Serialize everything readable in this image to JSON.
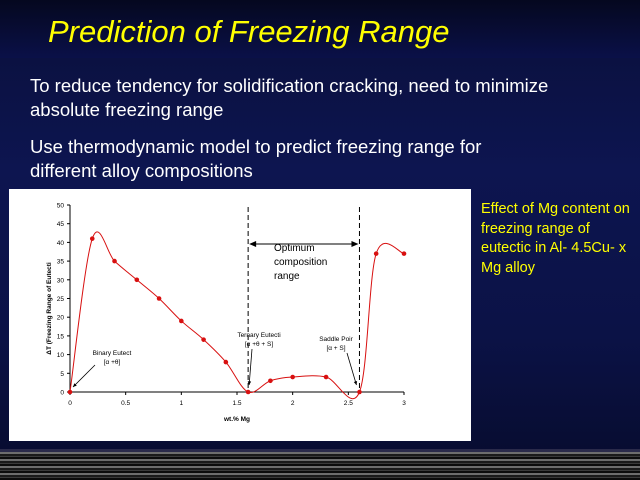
{
  "slide": {
    "title": "Prediction of Freezing Range",
    "bullets": [
      "To reduce tendency for solidification cracking, need to minimize absolute freezing range",
      "Use thermodynamic model to predict freezing range for different alloy compositions"
    ],
    "side_note": "Effect of Mg content on freezing range of eutectic in Al- 4.5Cu- x Mg alloy",
    "colors": {
      "title": "#ffff00",
      "bullets": "#ffffff",
      "side_note": "#ffff00",
      "series": "#d81010"
    }
  },
  "chart_data": {
    "type": "line",
    "xlabel": "wt.% Mg",
    "ylabel": "ΔT (Freezing Range of Eutecti",
    "xlim": [
      0,
      3
    ],
    "ylim": [
      0,
      50
    ],
    "x_ticks": [
      "0",
      "0.5",
      "1",
      "1.5",
      "2",
      "2.5",
      "3"
    ],
    "y_ticks": [
      "0",
      "5",
      "10",
      "15",
      "20",
      "25",
      "30",
      "35",
      "40",
      "45",
      "50"
    ],
    "series": [
      {
        "x": [
          0,
          0.2,
          0.4,
          0.6,
          0.8,
          1.0,
          1.2,
          1.4,
          1.6,
          1.8,
          2.0,
          2.3,
          2.6,
          2.75,
          3.0
        ],
        "y": [
          0,
          41,
          35,
          30,
          25,
          19,
          14,
          8,
          0,
          3,
          4,
          4,
          0,
          37,
          37
        ]
      }
    ],
    "optimum_bounds": [
      1.6,
      2.6
    ],
    "annotations": {
      "optimum": [
        "Optimum",
        "composition",
        "range"
      ],
      "ternary": [
        "Ternary Eutecti",
        "[α +θ + S]"
      ],
      "saddle": [
        "Saddle Poir",
        "[α + S]"
      ],
      "binary": [
        "Binary Eutect",
        "[α +θ]"
      ]
    }
  }
}
